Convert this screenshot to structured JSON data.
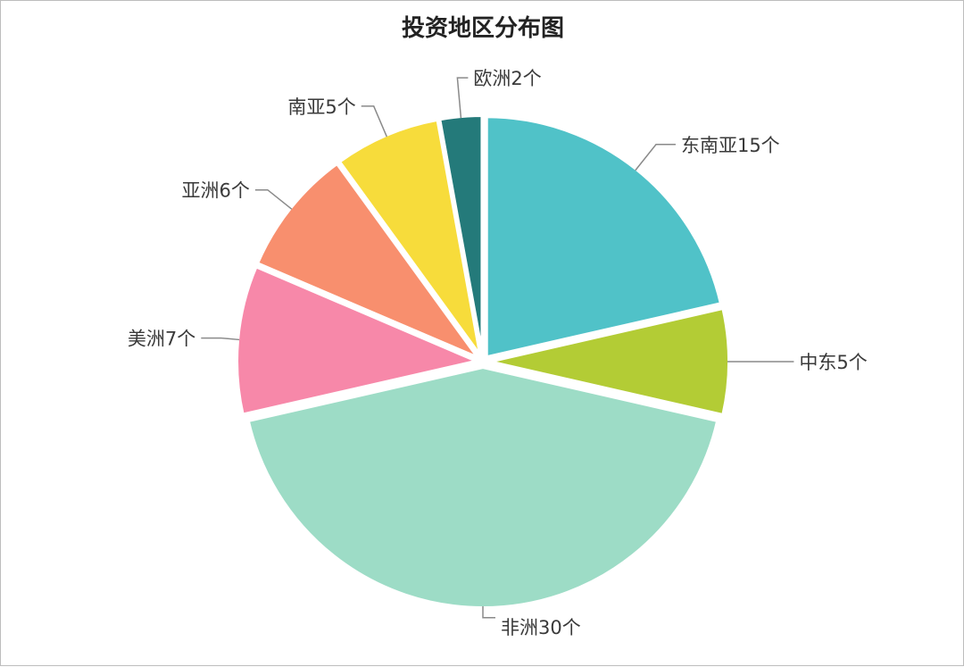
{
  "chart_data": {
    "type": "pie",
    "title": "投资地区分布图",
    "slices": [
      {
        "name": "东南亚",
        "value": 15,
        "label": "东南亚15个",
        "color": "#50c2c8"
      },
      {
        "name": "中东",
        "value": 5,
        "label": "中东5个",
        "color": "#b3cc35"
      },
      {
        "name": "非洲",
        "value": 30,
        "label": "非洲30个",
        "color": "#9ddcc6"
      },
      {
        "name": "美洲",
        "value": 7,
        "label": "美洲7个",
        "color": "#f788a9"
      },
      {
        "name": "亚洲",
        "value": 6,
        "label": "亚洲6个",
        "color": "#f88f6e"
      },
      {
        "name": "南亚",
        "value": 5,
        "label": "南亚5个",
        "color": "#f7dc3b"
      },
      {
        "name": "欧洲",
        "value": 2,
        "label": "欧洲2个",
        "color": "#247a7a"
      }
    ],
    "legend": "none",
    "data_labels": "outside with leader lines"
  }
}
